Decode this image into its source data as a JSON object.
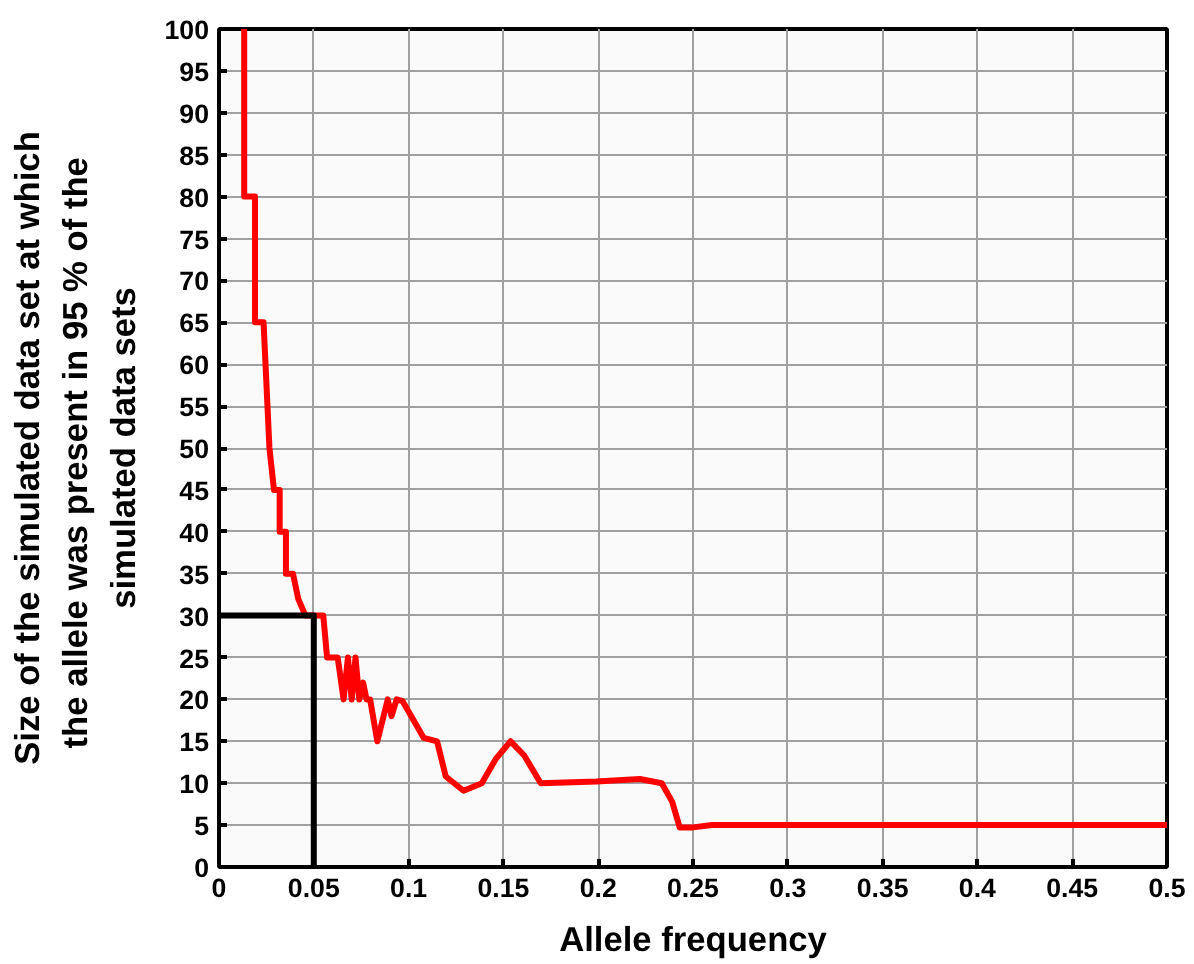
{
  "chart_data": {
    "type": "line",
    "xlabel": "Allele frequency",
    "ylabel": "Size of the simulated data set at which\nthe allele was present in 95 % of  the\nsimulated data sets",
    "series": [
      {
        "color": "#ff0000",
        "x": [
          0.0133,
          0.0133,
          0.019,
          0.019,
          0.0235,
          0.0266,
          0.029,
          0.032,
          0.032,
          0.0353,
          0.0353,
          0.039,
          0.0418,
          0.0456,
          0.055,
          0.057,
          0.0626,
          0.0657,
          0.068,
          0.07,
          0.072,
          0.074,
          0.076,
          0.0778,
          0.0797,
          0.0835,
          0.089,
          0.091,
          0.0937,
          0.0968,
          0.108,
          0.115,
          0.1196,
          0.129,
          0.1386,
          0.146,
          0.1538,
          0.161,
          0.1697,
          0.199,
          0.222,
          0.2335,
          0.239,
          0.243,
          0.249,
          0.26,
          0.5
        ],
        "values": [
          100,
          80,
          80,
          65,
          65,
          50,
          45,
          45,
          40,
          40,
          35,
          35,
          32,
          30,
          30,
          25,
          25,
          20,
          25,
          20,
          25,
          20,
          22,
          20,
          20,
          15,
          20,
          18,
          20,
          19.8,
          15.4,
          15,
          10.8,
          9.1,
          10,
          12.9,
          15,
          13.3,
          10,
          10.2,
          10.5,
          10,
          7.8,
          4.7,
          4.7,
          5,
          5
        ]
      },
      {
        "color": "#000000",
        "x": [
          0,
          0.05,
          0.05
        ],
        "values": [
          30,
          30,
          0
        ]
      }
    ],
    "xlim": [
      0,
      0.5
    ],
    "ylim": [
      0,
      100
    ],
    "xticks": [
      0,
      0.05,
      0.1,
      0.15,
      0.2,
      0.25,
      0.3,
      0.35,
      0.4,
      0.45,
      0.5
    ],
    "yticks": [
      0,
      5,
      10,
      15,
      20,
      25,
      30,
      35,
      40,
      45,
      50,
      55,
      60,
      65,
      70,
      75,
      80,
      85,
      90,
      95,
      100
    ],
    "grid": true
  }
}
